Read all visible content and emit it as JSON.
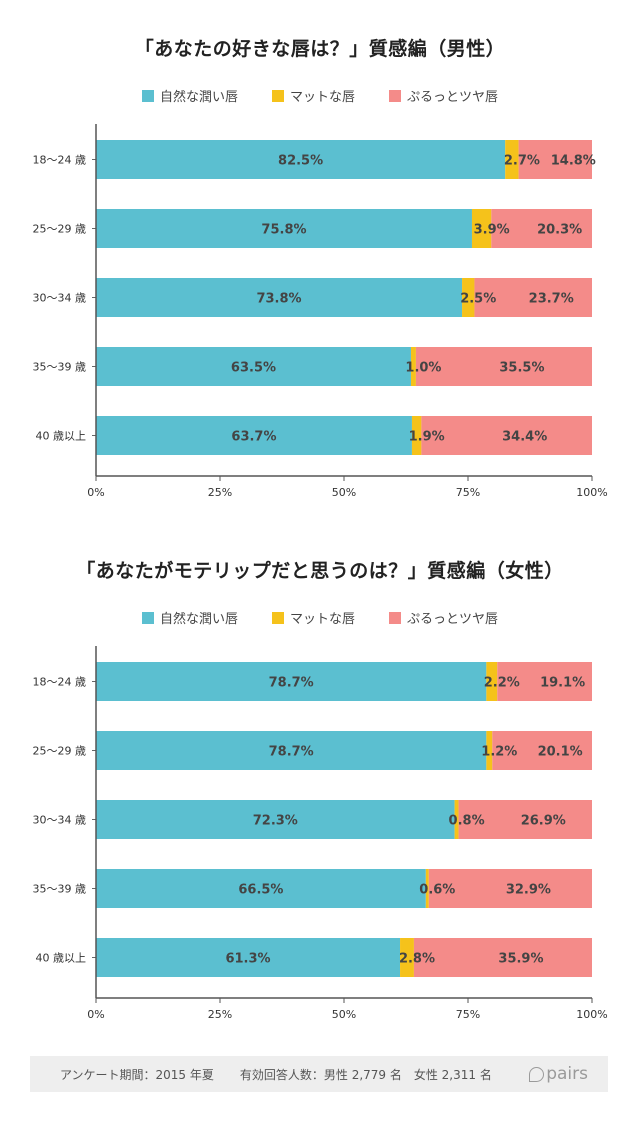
{
  "colors": {
    "natural": "#5bbfd0",
    "matte": "#f5c21b",
    "plump": "#f48b89"
  },
  "chart_data": [
    {
      "type": "bar",
      "orientation": "horizontal-stacked",
      "title": "「あなたの好きな唇は？」質感編（男性）",
      "categories": [
        "18〜24 歳",
        "25〜29 歳",
        "30〜34 歳",
        "35〜39 歳",
        "40 歳以上"
      ],
      "series": [
        {
          "name": "自然な潤い唇",
          "values": [
            82.5,
            75.8,
            73.8,
            63.5,
            63.7
          ]
        },
        {
          "name": "マットな唇",
          "values": [
            2.7,
            3.9,
            2.5,
            1.0,
            1.9
          ]
        },
        {
          "name": "ぷるっとツヤ唇",
          "values": [
            14.8,
            20.3,
            23.7,
            35.5,
            34.4
          ]
        }
      ],
      "labels": [
        [
          "82.5%",
          "2.7%",
          "14.8%"
        ],
        [
          "75.8%",
          "3.9%",
          "20.3%"
        ],
        [
          "73.8%",
          "2.5%",
          "23.7%"
        ],
        [
          "63.5%",
          "1.0%",
          "35.5%"
        ],
        [
          "63.7%",
          "1.9%",
          "34.4%"
        ]
      ],
      "xlim": [
        0,
        100
      ],
      "xticks": [
        "0%",
        "25%",
        "50%",
        "75%",
        "100%"
      ],
      "legend_position": "top-center"
    },
    {
      "type": "bar",
      "orientation": "horizontal-stacked",
      "title": "「あなたがモテリップだと思うのは？」質感編（女性）",
      "categories": [
        "18〜24 歳",
        "25〜29 歳",
        "30〜34 歳",
        "35〜39 歳",
        "40 歳以上"
      ],
      "series": [
        {
          "name": "自然な潤い唇",
          "values": [
            78.7,
            78.7,
            72.3,
            66.5,
            61.3
          ]
        },
        {
          "name": "マットな唇",
          "values": [
            2.2,
            1.2,
            0.8,
            0.6,
            2.8
          ]
        },
        {
          "name": "ぷるっとツヤ唇",
          "values": [
            19.1,
            20.1,
            26.9,
            32.9,
            35.9
          ]
        }
      ],
      "labels": [
        [
          "78.7%",
          "2.2%",
          "19.1%"
        ],
        [
          "78.7%",
          "1.2%",
          "20.1%"
        ],
        [
          "72.3%",
          "0.8%",
          "26.9%"
        ],
        [
          "66.5%",
          "0.6%",
          "32.9%"
        ],
        [
          "61.3%",
          "2.8%",
          "35.9%"
        ]
      ],
      "xlim": [
        0,
        100
      ],
      "xticks": [
        "0%",
        "25%",
        "50%",
        "75%",
        "100%"
      ],
      "legend_position": "top-center"
    }
  ],
  "footer": {
    "period": "アンケート期間：2015 年夏",
    "count": "有効回答人数：男性 2,779 名　女性 2,311 名",
    "logo": "pairs"
  }
}
